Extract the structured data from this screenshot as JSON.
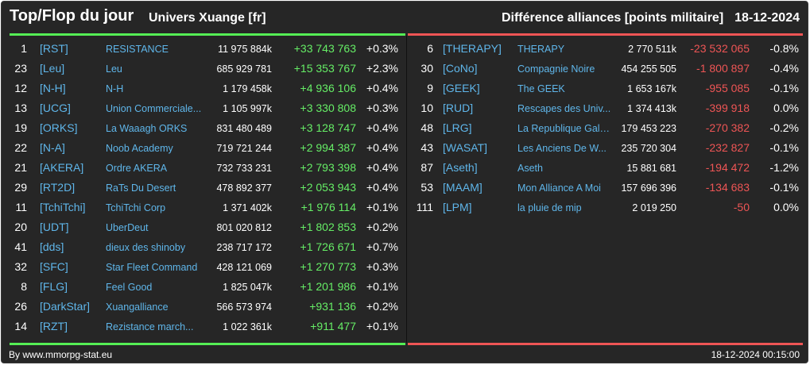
{
  "header": {
    "title": "Top/Flop du jour",
    "universe": "Univers Xuange [fr]",
    "subtitle": "Différence alliances [points militaire]",
    "date": "18-12-2024"
  },
  "colors": {
    "positive": "#66ee66",
    "negative": "#ee5555",
    "link": "#5fb6ea",
    "background": "#262626"
  },
  "top": [
    {
      "rank": "1",
      "tag": "[RST]",
      "name": "RESISTANCE",
      "points": "11 975 884k",
      "diff": "+33 743 763",
      "pct": "+0.3%"
    },
    {
      "rank": "23",
      "tag": "[Leu]",
      "name": "Leu",
      "points": "685 929 781",
      "diff": "+15 353 767",
      "pct": "+2.3%"
    },
    {
      "rank": "12",
      "tag": "[N-H]",
      "name": "N-H",
      "points": "1 179 458k",
      "diff": "+4 936 106",
      "pct": "+0.4%"
    },
    {
      "rank": "13",
      "tag": "[UCG]",
      "name": "Union Commerciale...",
      "points": "1 105 997k",
      "diff": "+3 330 808",
      "pct": "+0.3%"
    },
    {
      "rank": "19",
      "tag": "[ORKS]",
      "name": "La Waaagh ORKS",
      "points": "831 480 489",
      "diff": "+3 128 747",
      "pct": "+0.4%"
    },
    {
      "rank": "22",
      "tag": "[N-A]",
      "name": "Noob Academy",
      "points": "719 721 244",
      "diff": "+2 994 387",
      "pct": "+0.4%"
    },
    {
      "rank": "21",
      "tag": "[AKERA]",
      "name": "Ordre AKERA",
      "points": "732 733 231",
      "diff": "+2 793 398",
      "pct": "+0.4%"
    },
    {
      "rank": "29",
      "tag": "[RT2D]",
      "name": "RaTs Du Desert",
      "points": "478 892 377",
      "diff": "+2 053 943",
      "pct": "+0.4%"
    },
    {
      "rank": "11",
      "tag": "[TchiTchi]",
      "name": "TchiTchi Corp",
      "points": "1 371 402k",
      "diff": "+1 976 114",
      "pct": "+0.1%"
    },
    {
      "rank": "20",
      "tag": "[UDT]",
      "name": "UberDeut",
      "points": "801 020 812",
      "diff": "+1 802 853",
      "pct": "+0.2%"
    },
    {
      "rank": "41",
      "tag": "[dds]",
      "name": "dieux des shinoby",
      "points": "238 717 172",
      "diff": "+1 726 671",
      "pct": "+0.7%"
    },
    {
      "rank": "32",
      "tag": "[SFC]",
      "name": "Star Fleet Command",
      "points": "428 121 069",
      "diff": "+1 270 773",
      "pct": "+0.3%"
    },
    {
      "rank": "8",
      "tag": "[FLG]",
      "name": "Feel Good",
      "points": "1 825 047k",
      "diff": "+1 201 986",
      "pct": "+0.1%"
    },
    {
      "rank": "26",
      "tag": "[DarkStar]",
      "name": "Xuangalliance",
      "points": "566 573 974",
      "diff": "+931 136",
      "pct": "+0.2%"
    },
    {
      "rank": "14",
      "tag": "[RZT]",
      "name": "Rezistance march...",
      "points": "1 022 361k",
      "diff": "+911 477",
      "pct": "+0.1%"
    }
  ],
  "flop": [
    {
      "rank": "6",
      "tag": "[THERAPY]",
      "name": "THERAPY",
      "points": "2 770 511k",
      "diff": "-23 532 065",
      "pct": "-0.8%"
    },
    {
      "rank": "30",
      "tag": "[CoNo]",
      "name": "Compagnie Noire",
      "points": "454 255 505",
      "diff": "-1 800 897",
      "pct": "-0.4%"
    },
    {
      "rank": "9",
      "tag": "[GEEK]",
      "name": "The GEEK",
      "points": "1 653 167k",
      "diff": "-955 085",
      "pct": "-0.1%"
    },
    {
      "rank": "10",
      "tag": "[RUD]",
      "name": "Rescapes des Univ...",
      "points": "1 374 413k",
      "diff": "-399 918",
      "pct": "0.0%"
    },
    {
      "rank": "48",
      "tag": "[LRG]",
      "name": "La Republique Gala...",
      "points": "179 453 223",
      "diff": "-270 382",
      "pct": "-0.2%"
    },
    {
      "rank": "43",
      "tag": "[WASAT]",
      "name": "Les Anciens De W...",
      "points": "235 720 304",
      "diff": "-232 827",
      "pct": "-0.1%"
    },
    {
      "rank": "87",
      "tag": "[Aseth]",
      "name": "Aseth",
      "points": "15 881 681",
      "diff": "-194 472",
      "pct": "-1.2%"
    },
    {
      "rank": "53",
      "tag": "[MAAM]",
      "name": "Mon Alliance A Moi",
      "points": "157 696 396",
      "diff": "-134 683",
      "pct": "-0.1%"
    },
    {
      "rank": "111",
      "tag": "[LPM]",
      "name": "la pluie de mip",
      "points": "2 019 250",
      "diff": "-50",
      "pct": "0.0%"
    }
  ],
  "footer": {
    "credit": "By www.mmorpg-stat.eu",
    "timestamp": "18-12-2024 00:15:00"
  }
}
